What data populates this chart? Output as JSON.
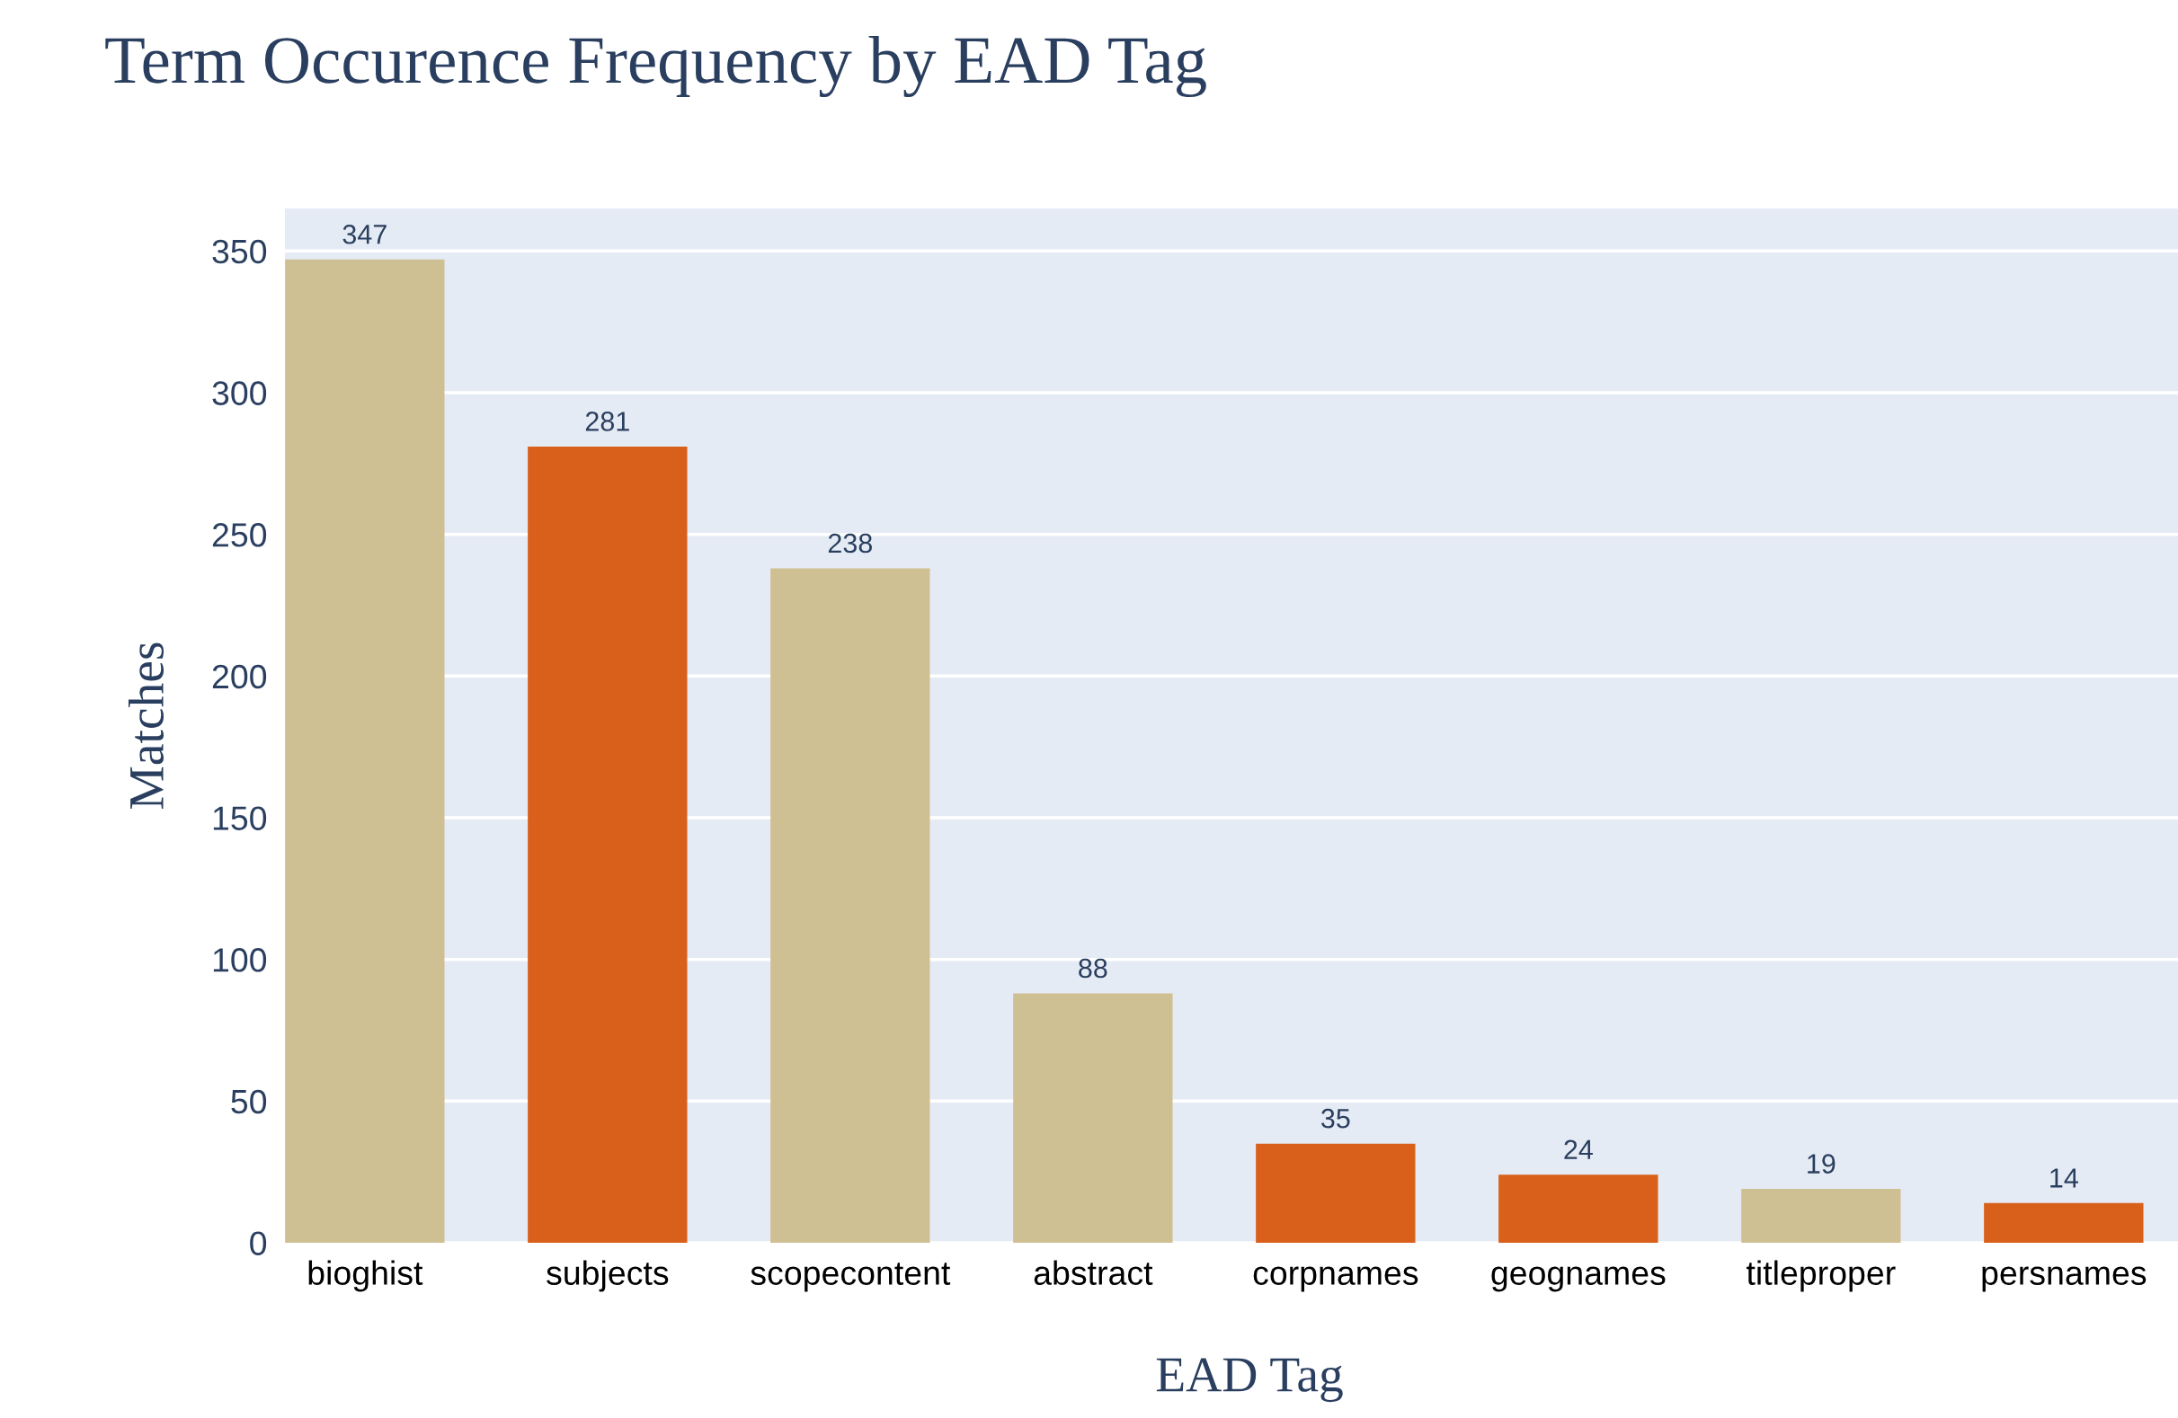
{
  "chart_data": {
    "type": "bar",
    "title": "Term Occurence Frequency by EAD Tag",
    "xlabel": "EAD Tag",
    "ylabel": "Matches",
    "categories": [
      "bioghist",
      "subjects",
      "scopecontent",
      "abstract",
      "corpnames",
      "geognames",
      "titleproper",
      "persnames"
    ],
    "values": [
      347,
      281,
      238,
      88,
      35,
      24,
      19,
      14
    ],
    "colors": [
      "#cfc094",
      "#d9601a",
      "#cfc094",
      "#cfc094",
      "#d9601a",
      "#d9601a",
      "#cfc094",
      "#d9601a"
    ],
    "ylim": [
      0,
      365
    ],
    "yticks": [
      0,
      50,
      100,
      150,
      200,
      250,
      300,
      350
    ],
    "grid": "y",
    "data_labels": true
  }
}
